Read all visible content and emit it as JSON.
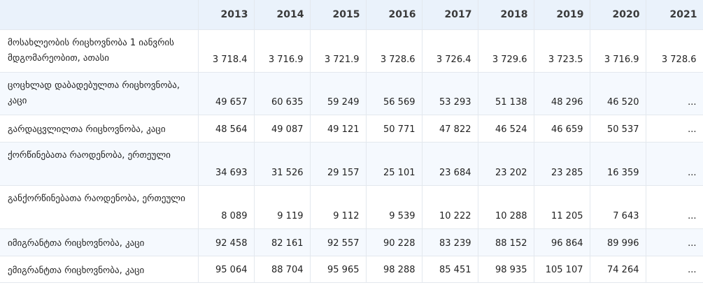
{
  "table": {
    "years": [
      "2013",
      "2014",
      "2015",
      "2016",
      "2017",
      "2018",
      "2019",
      "2020",
      "2021"
    ],
    "rows": [
      {
        "label": "მოსახლეობის რიცხოვნობა 1 იანვრის მდგომარეობით, ათასი",
        "values": [
          "3 718.4",
          "3 716.9",
          "3 721.9",
          "3 728.6",
          "3 726.4",
          "3 729.6",
          "3 723.5",
          "3 716.9",
          "3 728.6"
        ]
      },
      {
        "label": "ცოცხლად დაბადებულთა რიცხოვნობა, კაცი",
        "values": [
          "49 657",
          "60 635",
          "59 249",
          "56 569",
          "53 293",
          "51 138",
          "48 296",
          "46 520",
          "..."
        ]
      },
      {
        "label": "გარდაცვლილთა რიცხოვნობა, კაცი",
        "values": [
          "48 564",
          "49 087",
          "49 121",
          "50 771",
          "47 822",
          "46 524",
          "46 659",
          "50 537",
          "..."
        ]
      },
      {
        "label": "ქორწინებათა რაოდენობა, ერთეული",
        "values": [
          "34 693",
          "31 526",
          "29 157",
          "25 101",
          "23 684",
          "23 202",
          "23 285",
          "16 359",
          "..."
        ]
      },
      {
        "label": "განქორწინებათა რაოდენობა, ერთეული",
        "values": [
          "8 089",
          "9 119",
          "9 112",
          "9 539",
          "10 222",
          "10 288",
          "11 205",
          "7 643",
          "..."
        ]
      },
      {
        "label": "იმიგრანტთა რიცხოვნობა, კაცი",
        "values": [
          "92 458",
          "82 161",
          "92 557",
          "90 228",
          "83 239",
          "88 152",
          "96 864",
          "89 996",
          "..."
        ]
      },
      {
        "label": "ემიგრანტთა რიცხოვნობა, კაცი",
        "values": [
          "95 064",
          "88 704",
          "95 965",
          "98 288",
          "85 451",
          "98 935",
          "105 107",
          "74 264",
          "..."
        ]
      }
    ]
  }
}
